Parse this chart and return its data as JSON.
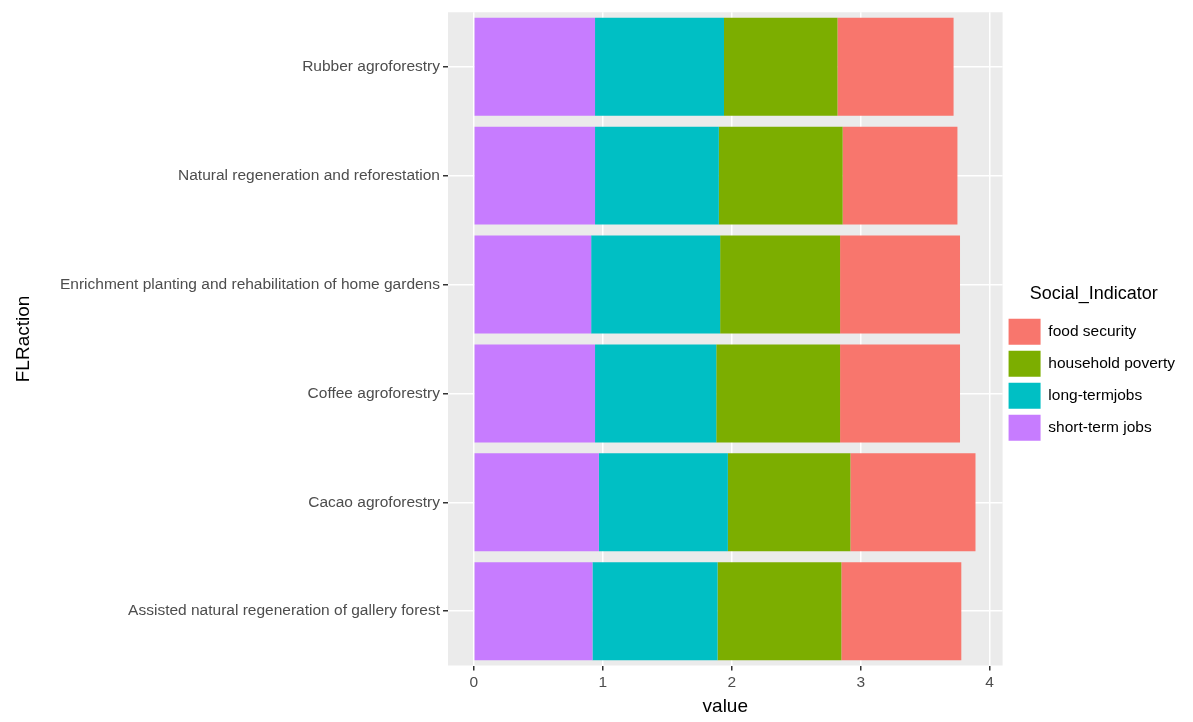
{
  "chart_data": {
    "type": "bar",
    "orientation": "horizontal",
    "stacked": true,
    "xlabel": "value",
    "ylabel": "FLRaction",
    "legend_title": "Social_Indicator",
    "legend": "right",
    "grid": true,
    "categories": [
      "Rubber agroforestry",
      "Natural regeneration and reforestation",
      "Enrichment planting and rehabilitation of home gardens",
      "Coffee agroforestry",
      "Cacao agroforestry",
      "Assisted natural regeneration of gallery forest"
    ],
    "series": [
      {
        "name": "short-term jobs",
        "color": "#c77cff",
        "values": [
          0.94,
          0.94,
          0.91,
          0.94,
          0.97,
          0.92
        ]
      },
      {
        "name": "long-termjobs",
        "color": "#00bfc4",
        "values": [
          1.0,
          0.96,
          1.0,
          0.94,
          1.0,
          0.97
        ]
      },
      {
        "name": "household poverty",
        "color": "#7cae00",
        "values": [
          0.88,
          0.96,
          0.93,
          0.96,
          0.95,
          0.96
        ]
      },
      {
        "name": "food security",
        "color": "#f8766d",
        "values": [
          0.9,
          0.89,
          0.93,
          0.93,
          0.97,
          0.93
        ]
      }
    ],
    "xlim": [
      -0.2,
      4.1
    ],
    "xticks": [
      0,
      1,
      2,
      3,
      4
    ]
  }
}
